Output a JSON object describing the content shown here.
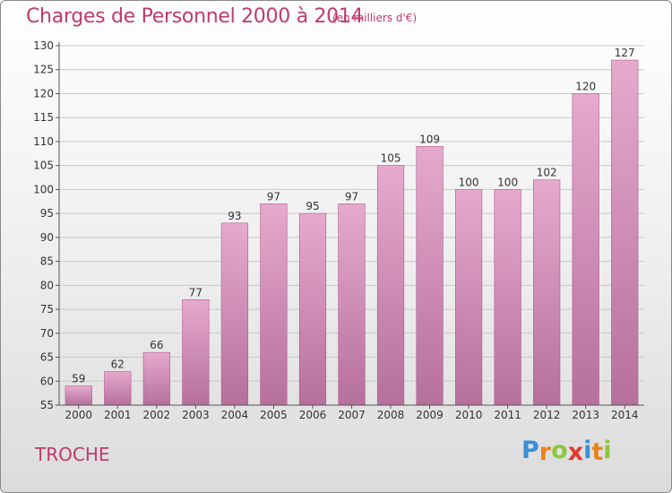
{
  "chart_data": {
    "type": "bar",
    "title": "Charges de Personnel 2000 à 2014",
    "subtitle": "(en milliers d'€)",
    "categories": [
      "2000",
      "2001",
      "2002",
      "2003",
      "2004",
      "2005",
      "2006",
      "2007",
      "2008",
      "2009",
      "2010",
      "2011",
      "2012",
      "2013",
      "2014"
    ],
    "values": [
      59,
      62,
      66,
      77,
      93,
      97,
      95,
      97,
      105,
      109,
      100,
      100,
      102,
      120,
      127
    ],
    "xlabel": "",
    "ylabel": "",
    "ylim": [
      55,
      130
    ],
    "yticks": [
      55,
      60,
      65,
      70,
      75,
      80,
      85,
      90,
      95,
      100,
      105,
      110,
      115,
      120,
      125,
      130
    ],
    "grid": true,
    "bar_color": "#d987b6",
    "bar_edge_color": "#b05a8a"
  },
  "footer": {
    "commune": "TROCHE",
    "logo_letters": [
      "P",
      "r",
      "o",
      "x",
      "i",
      "t",
      "i"
    ],
    "logo_colors": [
      "#3a8fd6",
      "#e8841c",
      "#8cc63e",
      "#e23a2f",
      "#3a8fd6",
      "#e8841c",
      "#8cc63e"
    ]
  },
  "colors": {
    "accent": "#c0396f"
  }
}
